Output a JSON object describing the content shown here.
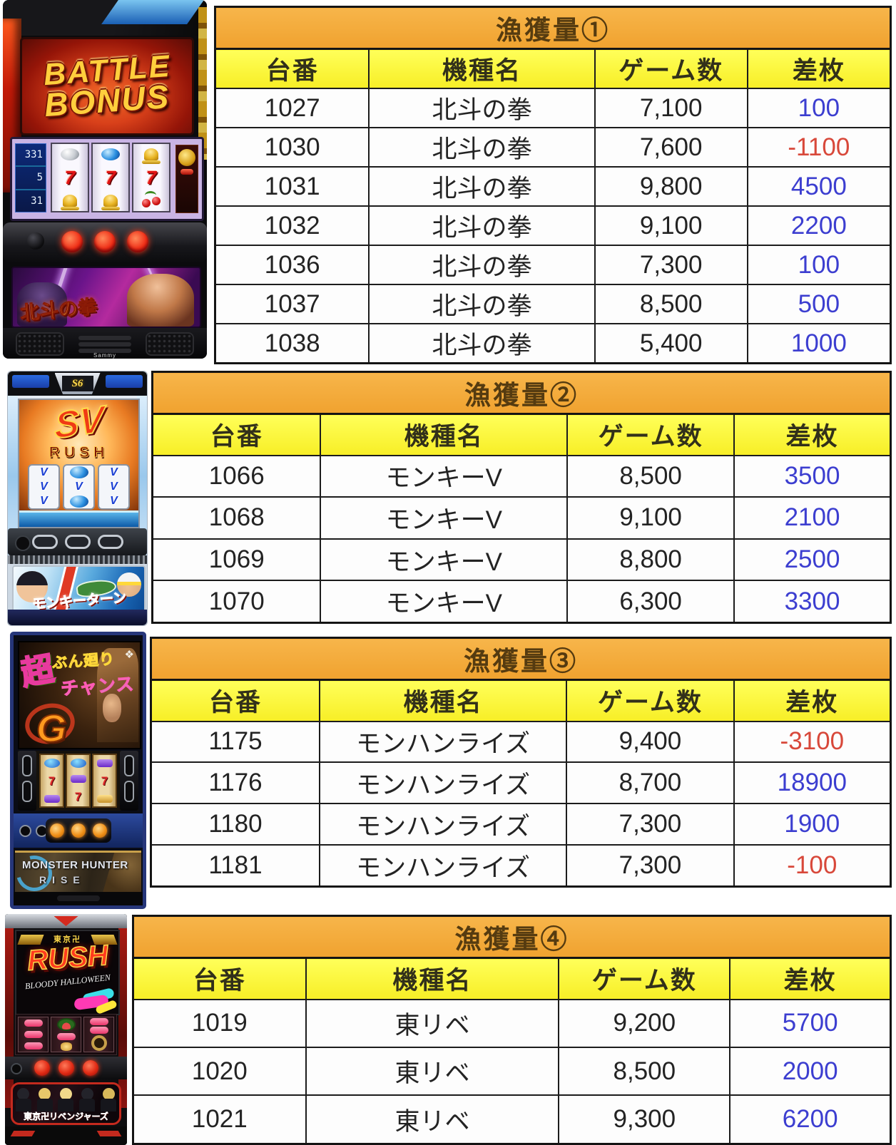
{
  "columns": [
    "台番",
    "機種名",
    "ゲーム数",
    "差枚"
  ],
  "colors": {
    "title_bg": "#f3ab3c",
    "header_bg": "#fbf43c",
    "positive": "#3c3ed0",
    "negative": "#d8483a",
    "border": "#1c1c1c"
  },
  "sections": [
    {
      "title": "漁獲量①",
      "rows": [
        {
          "no": "1027",
          "model": "北斗の拳",
          "games": "7,100",
          "diff": "100",
          "sign": "pos"
        },
        {
          "no": "1030",
          "model": "北斗の拳",
          "games": "7,600",
          "diff": "-1100",
          "sign": "neg"
        },
        {
          "no": "1031",
          "model": "北斗の拳",
          "games": "9,800",
          "diff": "4500",
          "sign": "pos"
        },
        {
          "no": "1032",
          "model": "北斗の拳",
          "games": "9,100",
          "diff": "2200",
          "sign": "pos"
        },
        {
          "no": "1036",
          "model": "北斗の拳",
          "games": "7,300",
          "diff": "100",
          "sign": "pos"
        },
        {
          "no": "1037",
          "model": "北斗の拳",
          "games": "8,500",
          "diff": "500",
          "sign": "pos"
        },
        {
          "no": "1038",
          "model": "北斗の拳",
          "games": "5,400",
          "diff": "1000",
          "sign": "pos"
        }
      ]
    },
    {
      "title": "漁獲量②",
      "rows": [
        {
          "no": "1066",
          "model": "モンキーV",
          "games": "8,500",
          "diff": "3500",
          "sign": "pos"
        },
        {
          "no": "1068",
          "model": "モンキーV",
          "games": "9,100",
          "diff": "2100",
          "sign": "pos"
        },
        {
          "no": "1069",
          "model": "モンキーV",
          "games": "8,800",
          "diff": "2500",
          "sign": "pos"
        },
        {
          "no": "1070",
          "model": "モンキーV",
          "games": "6,300",
          "diff": "3300",
          "sign": "pos"
        }
      ]
    },
    {
      "title": "漁獲量③",
      "rows": [
        {
          "no": "1175",
          "model": "モンハンライズ",
          "games": "9,400",
          "diff": "-3100",
          "sign": "neg"
        },
        {
          "no": "1176",
          "model": "モンハンライズ",
          "games": "8,700",
          "diff": "18900",
          "sign": "pos"
        },
        {
          "no": "1180",
          "model": "モンハンライズ",
          "games": "7,300",
          "diff": "1900",
          "sign": "pos"
        },
        {
          "no": "1181",
          "model": "モンハンライズ",
          "games": "7,300",
          "diff": "-100",
          "sign": "neg"
        }
      ]
    },
    {
      "title": "漁獲量④",
      "rows": [
        {
          "no": "1019",
          "model": "東リベ",
          "games": "9,200",
          "diff": "5700",
          "sign": "pos"
        },
        {
          "no": "1020",
          "model": "東リベ",
          "games": "8,500",
          "diff": "2000",
          "sign": "pos"
        },
        {
          "no": "1021",
          "model": "東リベ",
          "games": "9,300",
          "diff": "6200",
          "sign": "pos"
        }
      ]
    }
  ],
  "machines": {
    "hokuto": {
      "screen_line1": "BATTLE",
      "screen_line2": "BONUS",
      "display": [
        "331",
        "5",
        "31"
      ],
      "logo": "北斗の拳",
      "brand": "Sammy"
    },
    "monkey": {
      "emblem": "S6",
      "screen_logo": "SV",
      "screen_sub": "RUSH",
      "logo": "モンキーターン"
    },
    "monhan": {
      "graffiti_cho": "超",
      "graffiti_1": "ぶん廻り",
      "graffiti_2": "チャンス",
      "g_logo": "G",
      "diamond": "❖",
      "title_1": "MONSTER HUNTER",
      "title_2": "RISE"
    },
    "tokyo": {
      "header": "東京卍",
      "screen_logo": "RUSH",
      "screen_sub": "BLOODY HALLOWEEN",
      "logo": "東京卍リベンジャーズ"
    }
  }
}
